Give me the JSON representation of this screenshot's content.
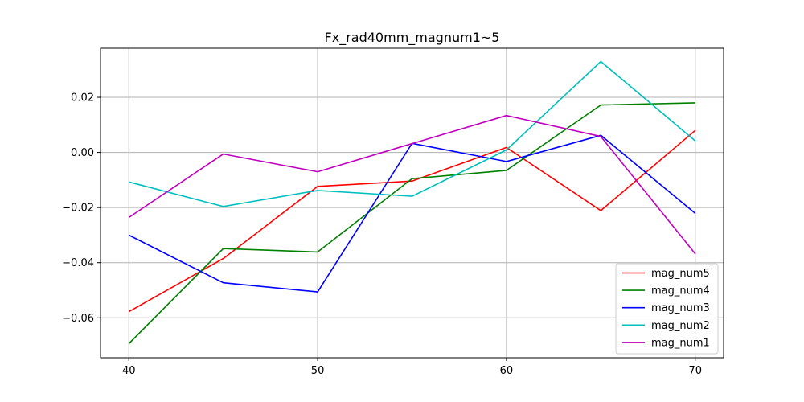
{
  "chart_data": {
    "type": "line",
    "title": "Fx_rad40mm_magnum1~5",
    "xlabel": "",
    "ylabel": "",
    "xlim": [
      38.5,
      71.5
    ],
    "ylim": [
      -0.0745,
      0.0378
    ],
    "x": [
      40,
      45,
      50,
      55,
      60,
      65,
      70
    ],
    "x_ticks": [
      40,
      50,
      60,
      70
    ],
    "x_tick_labels": [
      "40",
      "50",
      "60",
      "70"
    ],
    "y_ticks": [
      -0.06,
      -0.04,
      -0.02,
      0.0,
      0.02
    ],
    "y_tick_labels": [
      "−0.06",
      "−0.04",
      "−0.02",
      "0.00",
      "0.02"
    ],
    "grid": true,
    "legend_position": "lower right",
    "series": [
      {
        "name": "mag_num5",
        "color": "#ff0000",
        "values": [
          -0.0578,
          -0.0385,
          -0.0123,
          -0.0104,
          0.0018,
          -0.0211,
          0.008
        ]
      },
      {
        "name": "mag_num4",
        "color": "#008000",
        "values": [
          -0.0694,
          -0.0349,
          -0.0361,
          -0.0095,
          -0.0065,
          0.0172,
          0.018
        ]
      },
      {
        "name": "mag_num3",
        "color": "#0000ff",
        "values": [
          -0.03,
          -0.0473,
          -0.0506,
          0.0033,
          -0.0033,
          0.0062,
          -0.0221
        ]
      },
      {
        "name": "mag_num2",
        "color": "#00bfbf",
        "values": [
          -0.0107,
          -0.0196,
          -0.0138,
          -0.0159,
          0.0009,
          0.033,
          0.0042
        ]
      },
      {
        "name": "mag_num1",
        "color": "#bf00bf",
        "values": [
          -0.0236,
          -0.0006,
          -0.007,
          0.0032,
          0.0134,
          0.0058,
          -0.0368
        ]
      }
    ]
  }
}
